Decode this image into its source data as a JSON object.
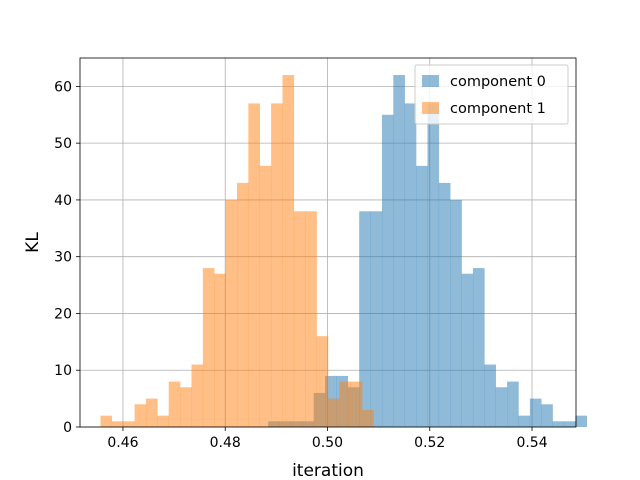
{
  "chart_data": {
    "type": "histogram",
    "title": "",
    "xlabel": "iteration",
    "ylabel": "KL",
    "xlim": [
      0.4516,
      0.5486
    ],
    "ylim": [
      0,
      65
    ],
    "xticks": [
      0.46,
      0.48,
      0.5,
      0.52,
      0.54
    ],
    "xtick_labels": [
      "0.46",
      "0.48",
      "0.50",
      "0.52",
      "0.54"
    ],
    "yticks": [
      0,
      10,
      20,
      30,
      40,
      50,
      60
    ],
    "ytick_labels": [
      "0",
      "10",
      "20",
      "30",
      "40",
      "50",
      "60"
    ],
    "grid": true,
    "legend_position": "top-right",
    "series": [
      {
        "name": "component 0",
        "color": "#1f77b4",
        "alpha": 0.5,
        "bin_start": 0.4884,
        "bin_width": 0.002225,
        "counts": [
          1,
          1,
          1,
          1,
          6,
          9,
          9,
          7,
          38,
          38,
          55,
          62,
          57,
          46,
          57,
          43,
          40,
          27,
          28,
          11,
          7,
          8,
          2,
          5,
          4,
          1,
          1,
          2
        ]
      },
      {
        "name": "component 1",
        "color": "#ff7f0e",
        "alpha": 0.5,
        "bin_start": 0.4556,
        "bin_width": 0.002225,
        "counts": [
          2,
          1,
          1,
          4,
          5,
          2,
          8,
          7,
          11,
          28,
          27,
          40,
          43,
          57,
          46,
          57,
          62,
          38,
          38,
          16,
          5,
          8,
          8,
          3
        ]
      }
    ]
  }
}
